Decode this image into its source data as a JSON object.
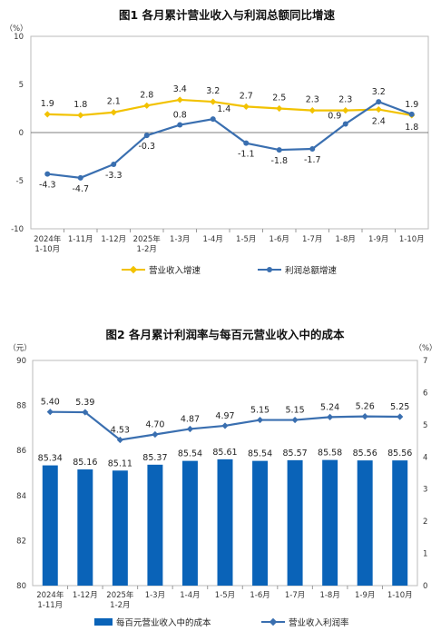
{
  "chart_data": [
    {
      "type": "line",
      "title": "图1  各月累计营业收入与利润总额同比增速",
      "ylabel": "（%）",
      "ylim": [
        -10,
        10
      ],
      "yticks": [
        "10",
        "5",
        "0",
        "-5",
        "-10"
      ],
      "categories": [
        [
          "2024年",
          "1-10月"
        ],
        [
          "1-11月"
        ],
        [
          "1-12月"
        ],
        [
          "2025年",
          "1-2月"
        ],
        [
          "1-3月"
        ],
        [
          "1-4月"
        ],
        [
          "1-5月"
        ],
        [
          "1-6月"
        ],
        [
          "1-7月"
        ],
        [
          "1-8月"
        ],
        [
          "1-9月"
        ],
        [
          "1-10月"
        ]
      ],
      "series": [
        {
          "name": "营业收入增速",
          "color": "#F2C200",
          "values": [
            1.9,
            1.8,
            2.1,
            2.8,
            3.4,
            3.2,
            2.7,
            2.5,
            2.3,
            2.3,
            2.4,
            1.8
          ],
          "labels": [
            "1.9",
            "1.8",
            "2.1",
            "2.8",
            "3.4",
            "3.2",
            "2.7",
            "2.5",
            "2.3",
            "2.3",
            "2.4",
            "1.8"
          ]
        },
        {
          "name": "利润总额增速",
          "color": "#3A6FB0",
          "values": [
            -4.3,
            -4.7,
            -3.3,
            -0.3,
            0.8,
            1.4,
            -1.1,
            -1.8,
            -1.7,
            0.9,
            3.2,
            1.9
          ],
          "labels": [
            "-4.3",
            "-4.7",
            "-3.3",
            "-0.3",
            "0.8",
            "1.4",
            "-1.1",
            "-1.8",
            "-1.7",
            "0.9",
            "3.2",
            "1.9"
          ]
        }
      ],
      "grid": false,
      "legend": "bottom"
    },
    {
      "type": "bar",
      "title": "图2  各月累计利润率与每百元营业收入中的成本",
      "ylabel_left": "（元）",
      "ylabel_right": "（%）",
      "ylim_left": [
        80,
        90
      ],
      "ylim_right": [
        0,
        7
      ],
      "yticks_left": [
        "90",
        "88",
        "86",
        "84",
        "82",
        "80"
      ],
      "yticks_right": [
        "7",
        "6",
        "5",
        "4",
        "3",
        "2",
        "1",
        "0"
      ],
      "categories": [
        [
          "2024年",
          "1-11月"
        ],
        [
          "1-12月"
        ],
        [
          "2025年",
          "1-2月"
        ],
        [
          "1-3月"
        ],
        [
          "1-4月"
        ],
        [
          "1-5月"
        ],
        [
          "1-6月"
        ],
        [
          "1-7月"
        ],
        [
          "1-8月"
        ],
        [
          "1-9月"
        ],
        [
          "1-10月"
        ]
      ],
      "series": [
        {
          "name": "每百元营业收入中的成本",
          "kind": "bar",
          "axis": "left",
          "color": "#0A63B8",
          "values": [
            85.34,
            85.16,
            85.11,
            85.37,
            85.54,
            85.61,
            85.54,
            85.57,
            85.58,
            85.56,
            85.56
          ],
          "labels": [
            "85.34",
            "85.16",
            "85.11",
            "85.37",
            "85.54",
            "85.61",
            "85.54",
            "85.57",
            "85.58",
            "85.56",
            "85.56"
          ]
        },
        {
          "name": "营业收入利润率",
          "kind": "line",
          "axis": "right",
          "color": "#3A6FB0",
          "values": [
            5.4,
            5.39,
            4.53,
            4.7,
            4.87,
            4.97,
            5.15,
            5.15,
            5.24,
            5.26,
            5.25
          ],
          "labels": [
            "5.40",
            "5.39",
            "4.53",
            "4.70",
            "4.87",
            "4.97",
            "5.15",
            "5.15",
            "5.24",
            "5.26",
            "5.25"
          ]
        }
      ],
      "grid": false,
      "legend": "bottom"
    }
  ]
}
